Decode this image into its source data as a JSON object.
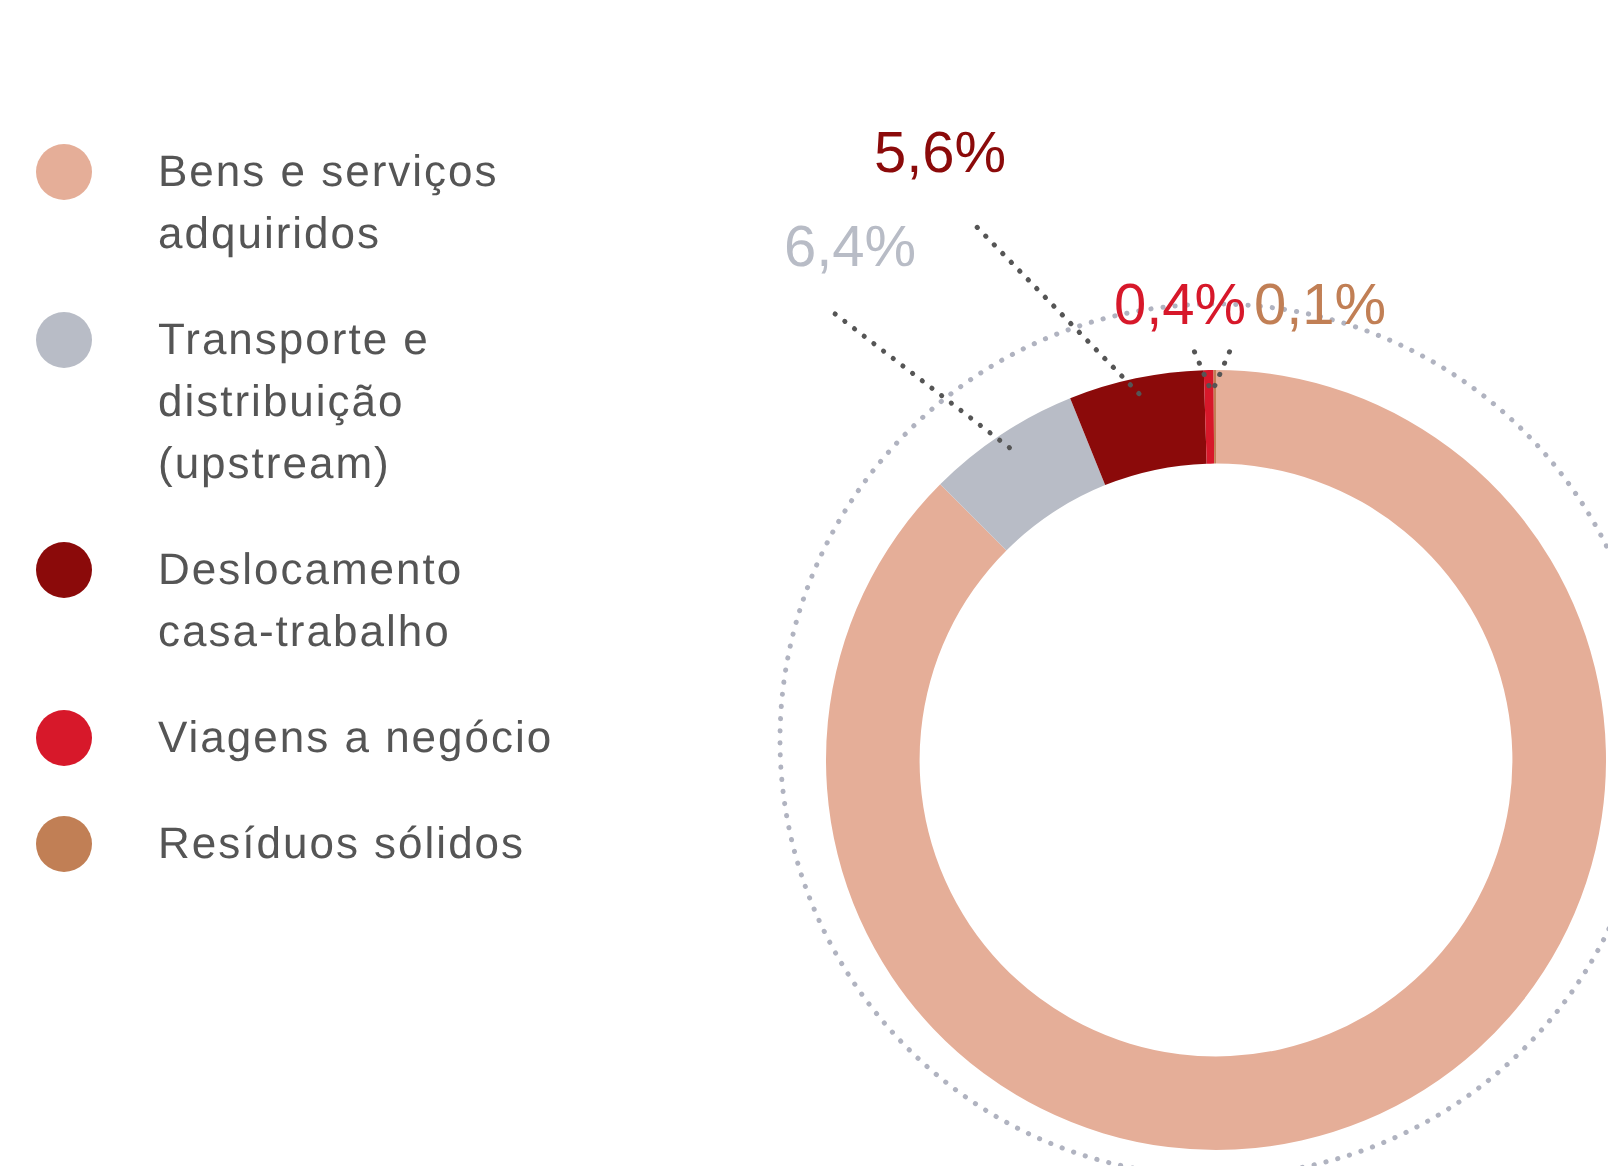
{
  "chart_data": {
    "type": "donut",
    "categories": [
      "Bens e serviços adquiridos",
      "Transporte e distribuição (upstream)",
      "Deslocamento casa-trabalho",
      "Viagens a negócio",
      "Resíduos sólidos"
    ],
    "values": [
      87.5,
      6.4,
      5.6,
      0.4,
      0.1
    ],
    "value_labels": [
      null,
      "6,4%",
      "5,6%",
      "0,4%",
      "0,1%"
    ],
    "colors": [
      "#e5ae98",
      "#b8bcc6",
      "#8b0a0a",
      "#d7182a",
      "#c17f55"
    ],
    "legend": "left"
  }
}
